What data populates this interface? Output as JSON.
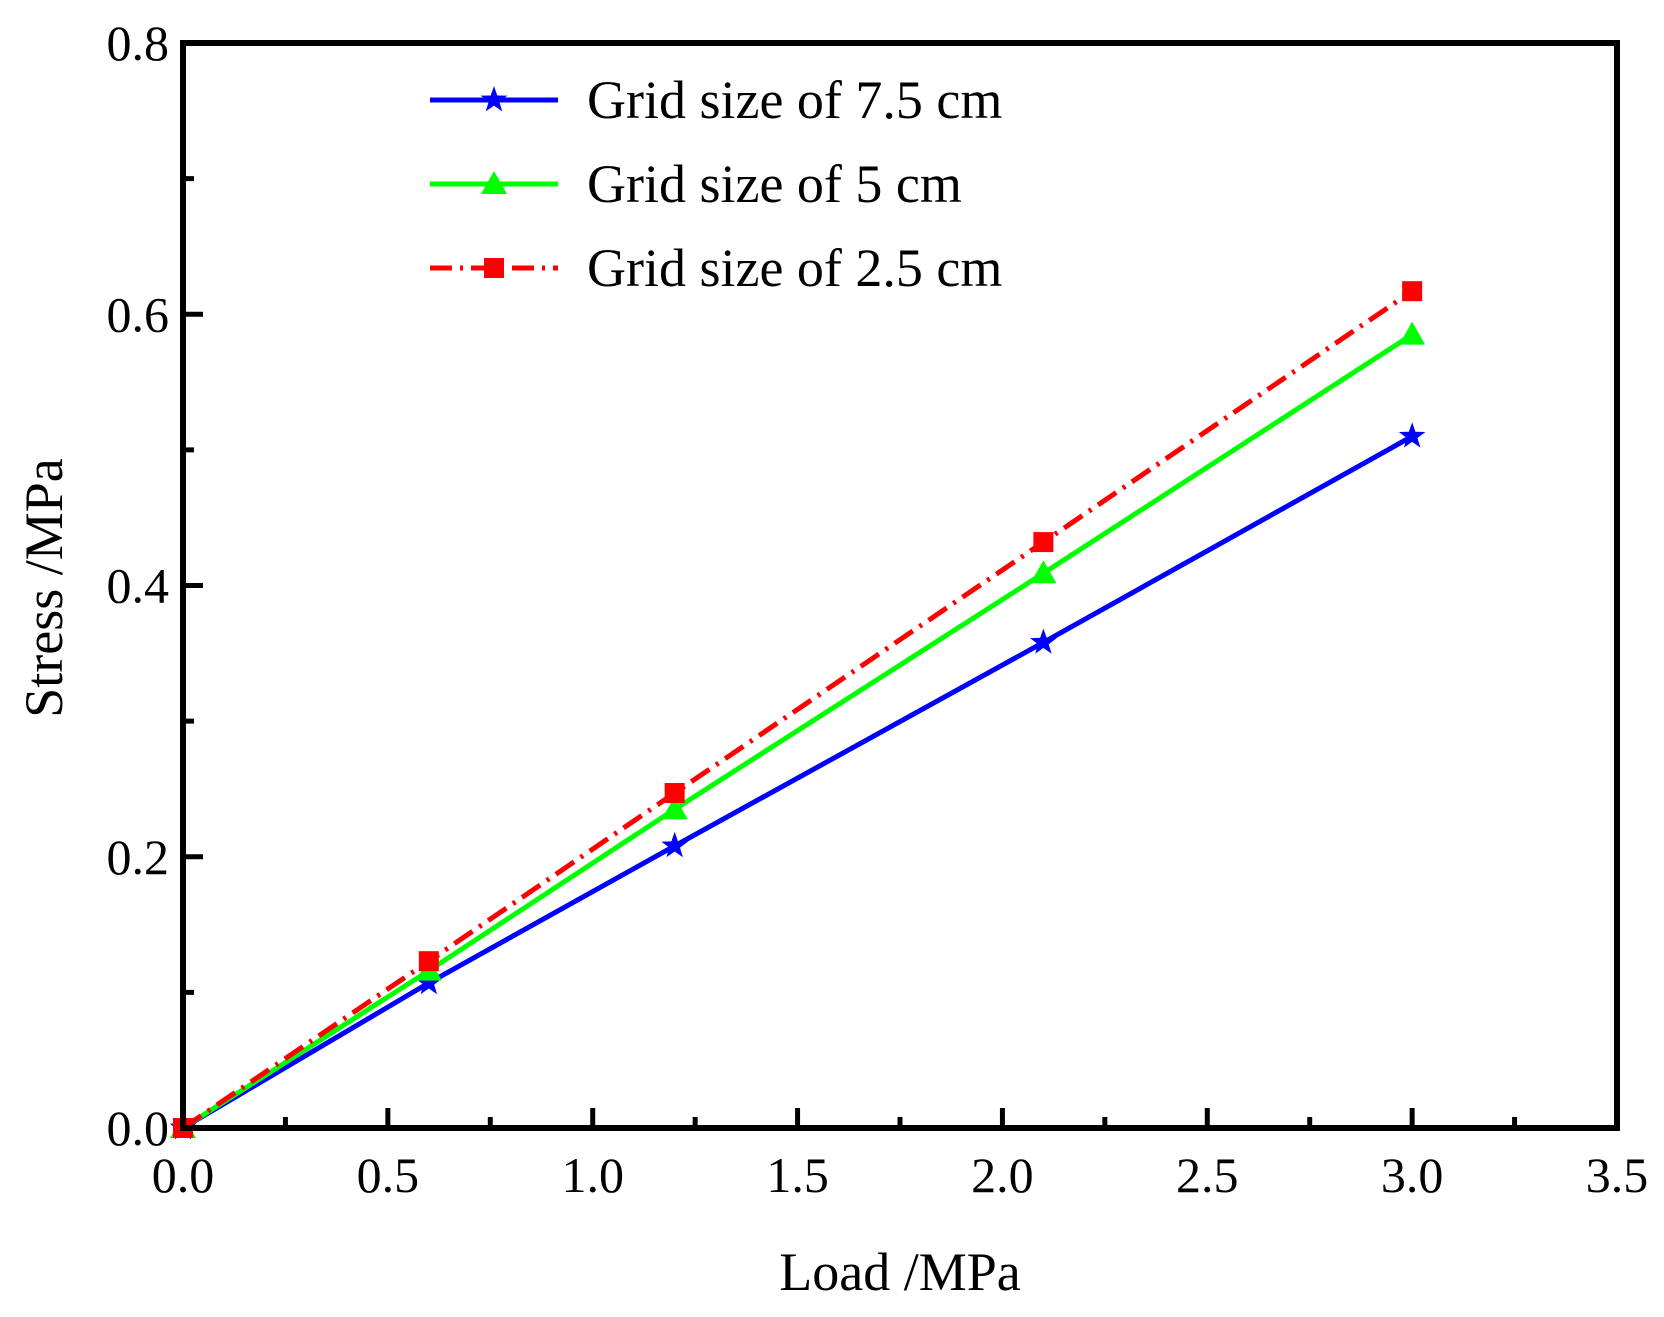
{
  "chart_data": {
    "type": "line",
    "title": "",
    "xlabel": "Load /MPa",
    "ylabel": "Stress  /MPa",
    "xlim": [
      0,
      3.5
    ],
    "ylim": [
      0,
      0.8
    ],
    "x_ticks": [
      0,
      0.5,
      1.0,
      1.5,
      2.0,
      2.5,
      3.0,
      3.5
    ],
    "x_tick_labels": [
      "0.0",
      "0.5",
      "1.0",
      "1.5",
      "2.0",
      "2.5",
      "3.0",
      "3.5"
    ],
    "y_ticks": [
      0,
      0.2,
      0.4,
      0.6,
      0.8
    ],
    "y_tick_labels": [
      "0.0",
      "0.2",
      "0.4",
      "0.6",
      "0.8"
    ],
    "grid": false,
    "legend_position": "top-center",
    "series": [
      {
        "name": "Grid size of 7.5 cm",
        "color": "#0000ff",
        "marker": "star",
        "line_style": "solid",
        "x": [
          0,
          0.6,
          1.2,
          2.1,
          3.0
        ],
        "y": [
          0,
          0.107,
          0.208,
          0.358,
          0.51
        ]
      },
      {
        "name": "Grid size of 5 cm",
        "color": "#00ff00",
        "marker": "triangle",
        "line_style": "solid",
        "x": [
          0,
          0.6,
          1.2,
          2.1,
          3.0
        ],
        "y": [
          0,
          0.116,
          0.235,
          0.409,
          0.585
        ]
      },
      {
        "name": "Grid size of 2.5 cm",
        "color": "#ff0000",
        "marker": "square",
        "line_style": "dash-dot",
        "x": [
          0,
          0.6,
          1.2,
          2.1,
          3.0
        ],
        "y": [
          0,
          0.123,
          0.247,
          0.432,
          0.617
        ]
      }
    ]
  }
}
